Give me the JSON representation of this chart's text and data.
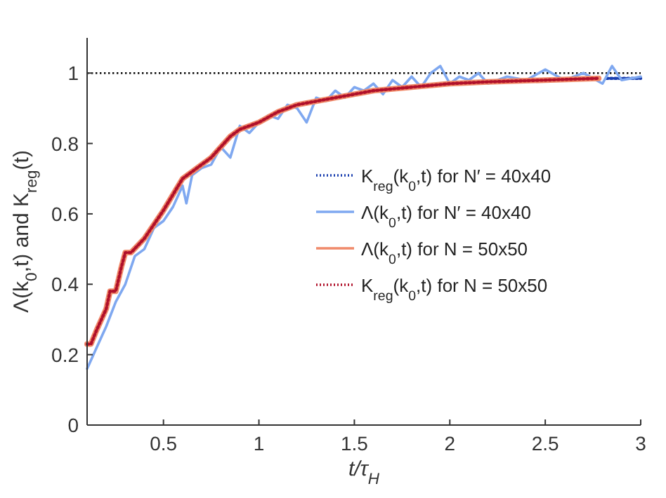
{
  "chart_data": {
    "type": "line",
    "xlabel": "t/τ$_{H}$",
    "ylabel": "Λ(k$_{0}$,t)  and  K$_{reg}$(t)",
    "xlim": [
      0.1,
      3
    ],
    "xticks": [
      0.5,
      1,
      1.5,
      2,
      2.5,
      3
    ],
    "ylim": [
      0,
      1.1
    ],
    "yticks": [
      0,
      0.2,
      0.4,
      0.6,
      0.8,
      1
    ],
    "grid": false,
    "legend": "right",
    "ref_lines": [
      {
        "axis": "y",
        "value": 1,
        "color": "#000000",
        "line_style": "dotted"
      }
    ],
    "series": [
      {
        "name": "K$_{reg}$(k$_{0}$,t) for N′ = 40x40",
        "color": "#1a3fb0",
        "line_style": "dotted",
        "x": [
          2.82,
          2.9,
          3.0
        ],
        "values": [
          0.985,
          0.985,
          0.985
        ]
      },
      {
        "name": "Λ(k$_{0}$,t) for N′ =  40x40",
        "color": "#7fa8f0",
        "line_style": "solid",
        "x": [
          0.1,
          0.15,
          0.2,
          0.25,
          0.3,
          0.35,
          0.4,
          0.45,
          0.5,
          0.55,
          0.6,
          0.62,
          0.65,
          0.7,
          0.75,
          0.8,
          0.85,
          0.9,
          0.95,
          1.0,
          1.05,
          1.1,
          1.15,
          1.2,
          1.25,
          1.3,
          1.35,
          1.4,
          1.45,
          1.5,
          1.55,
          1.6,
          1.65,
          1.7,
          1.75,
          1.8,
          1.85,
          1.9,
          1.95,
          2.0,
          2.05,
          2.1,
          2.15,
          2.2,
          2.3,
          2.4,
          2.5,
          2.6,
          2.7,
          2.8,
          2.85,
          2.9,
          3.0
        ],
        "values": [
          0.16,
          0.22,
          0.28,
          0.35,
          0.4,
          0.48,
          0.5,
          0.56,
          0.58,
          0.62,
          0.68,
          0.63,
          0.71,
          0.73,
          0.74,
          0.79,
          0.76,
          0.85,
          0.83,
          0.86,
          0.88,
          0.87,
          0.91,
          0.9,
          0.86,
          0.93,
          0.92,
          0.95,
          0.93,
          0.96,
          0.95,
          0.97,
          0.94,
          0.98,
          0.96,
          0.99,
          0.96,
          1.0,
          1.02,
          0.97,
          0.99,
          0.98,
          1.0,
          0.97,
          0.99,
          0.98,
          1.01,
          0.98,
          1.0,
          0.97,
          1.02,
          0.98,
          0.99
        ]
      },
      {
        "name": "Λ(k$_{0}$,t) for N = 50x50",
        "color": "#f08a6a",
        "line_style": "solid",
        "x": [
          0.1,
          0.12,
          0.15,
          0.2,
          0.22,
          0.25,
          0.28,
          0.3,
          0.33,
          0.4,
          0.5,
          0.6,
          0.65,
          0.75,
          0.85,
          0.9,
          1.0,
          1.1,
          1.2,
          1.4,
          1.6,
          1.8,
          2.0,
          2.2,
          2.5,
          2.78
        ],
        "values": [
          0.23,
          0.23,
          0.27,
          0.33,
          0.38,
          0.38,
          0.45,
          0.49,
          0.49,
          0.53,
          0.61,
          0.7,
          0.72,
          0.76,
          0.82,
          0.84,
          0.86,
          0.89,
          0.91,
          0.93,
          0.95,
          0.96,
          0.97,
          0.975,
          0.98,
          0.985
        ]
      },
      {
        "name": "K$_{reg}$(k$_{0}$,t) for N = 50x50",
        "color": "#b0102a",
        "line_style": "dotted",
        "x": [
          0.1,
          0.12,
          0.15,
          0.2,
          0.22,
          0.25,
          0.28,
          0.3,
          0.33,
          0.4,
          0.5,
          0.6,
          0.65,
          0.75,
          0.85,
          0.9,
          1.0,
          1.1,
          1.2,
          1.4,
          1.6,
          1.8,
          2.0,
          2.2,
          2.5,
          2.78
        ],
        "values": [
          0.23,
          0.23,
          0.27,
          0.33,
          0.38,
          0.38,
          0.45,
          0.49,
          0.49,
          0.53,
          0.61,
          0.7,
          0.72,
          0.76,
          0.82,
          0.84,
          0.86,
          0.89,
          0.91,
          0.93,
          0.95,
          0.96,
          0.97,
          0.975,
          0.98,
          0.985
        ]
      }
    ]
  }
}
